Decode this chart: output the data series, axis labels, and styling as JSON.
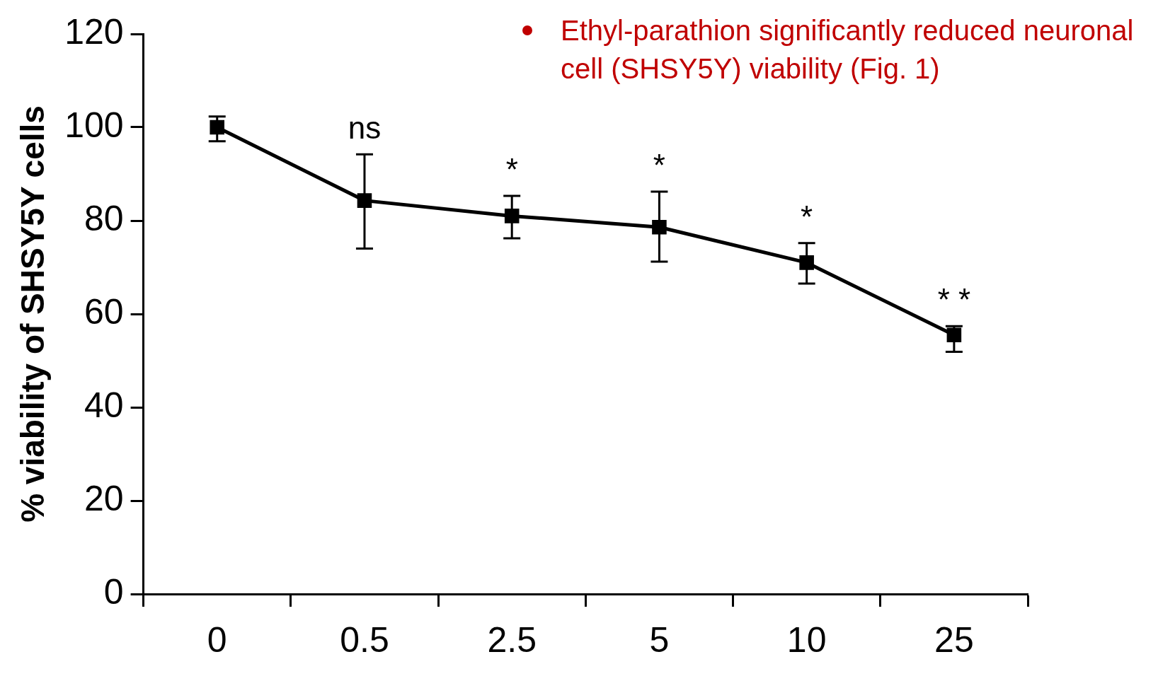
{
  "chart_data": {
    "type": "line",
    "categories": [
      "0",
      "0.5",
      "2.5",
      "5",
      "10",
      "25"
    ],
    "series": [
      {
        "color": "#000000",
        "values": [
          100,
          84.3,
          81,
          78.6,
          71,
          55.5
        ],
        "errors": [
          [
            97,
            102.3
          ],
          [
            74,
            94.2
          ],
          [
            76.2,
            85.3
          ],
          [
            71.2,
            86.2
          ],
          [
            66.5,
            75.2
          ],
          [
            51.9,
            57.4
          ]
        ]
      }
    ],
    "ylabel": "% viability of SHSY5Y cells",
    "ylim": [
      0,
      120
    ],
    "yticks": [
      0,
      20,
      40,
      60,
      80,
      100,
      120
    ],
    "grid": false,
    "legend": false,
    "marker": "square",
    "line_style": "solid",
    "annotations": [
      "Ethyl-parathion significantly reduced neuronal cell (SHSY5Y) viability (Fig. 1)",
      {
        "text": "ns",
        "x": "0.5",
        "y": 94.2
      },
      {
        "text": "*",
        "x": "2.5",
        "y": 85.3
      },
      {
        "text": "*",
        "x": "5",
        "y": 86.2
      },
      {
        "text": "*",
        "x": "10",
        "y": 75.2
      },
      {
        "text": "* *",
        "x": "25",
        "y": 57.4
      }
    ]
  }
}
